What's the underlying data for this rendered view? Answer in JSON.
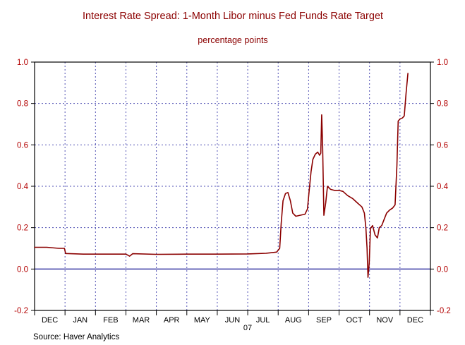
{
  "chart_data": {
    "type": "line",
    "title": "Interest Rate Spread: 1-Month Libor minus Fed Funds Rate Target",
    "subtitle": "percentage points",
    "source": "Source: Haver Analytics",
    "year_label": "07",
    "x_month_labels": [
      "DEC",
      "JAN",
      "FEB",
      "MAR",
      "APR",
      "MAY",
      "JUN",
      "JUL",
      "AUG",
      "SEP",
      "OCT",
      "NOV",
      "DEC"
    ],
    "x_months": 13,
    "y_ticks": [
      1.0,
      0.8,
      0.6,
      0.4,
      0.2,
      0.0,
      -0.2
    ],
    "ylim": [
      -0.2,
      1.0
    ],
    "grid": "dashed-both-axes",
    "legend": "none",
    "colors": {
      "title": "#8b0000",
      "axis_labels": "#b30000",
      "line": "#8b0000",
      "grid": "#5050b4",
      "zero_line": "#3333a0",
      "frame": "#000000",
      "month_labels": "#000000",
      "source": "#000000"
    },
    "series": [
      {
        "name": "1-Month Libor minus Fed Funds Rate Target (percentage points)",
        "points": [
          [
            0.0,
            0.105
          ],
          [
            0.4,
            0.105
          ],
          [
            0.8,
            0.1
          ],
          [
            0.98,
            0.1
          ],
          [
            1.02,
            0.075
          ],
          [
            1.6,
            0.072
          ],
          [
            2.4,
            0.072
          ],
          [
            3.0,
            0.072
          ],
          [
            3.12,
            0.062
          ],
          [
            3.22,
            0.074
          ],
          [
            4.0,
            0.071
          ],
          [
            5.0,
            0.072
          ],
          [
            6.0,
            0.072
          ],
          [
            7.0,
            0.073
          ],
          [
            7.6,
            0.076
          ],
          [
            7.95,
            0.082
          ],
          [
            8.05,
            0.1
          ],
          [
            8.1,
            0.22
          ],
          [
            8.16,
            0.33
          ],
          [
            8.24,
            0.365
          ],
          [
            8.32,
            0.37
          ],
          [
            8.4,
            0.33
          ],
          [
            8.48,
            0.27
          ],
          [
            8.58,
            0.255
          ],
          [
            8.72,
            0.26
          ],
          [
            8.88,
            0.265
          ],
          [
            8.96,
            0.29
          ],
          [
            9.02,
            0.38
          ],
          [
            9.08,
            0.47
          ],
          [
            9.14,
            0.53
          ],
          [
            9.22,
            0.555
          ],
          [
            9.3,
            0.565
          ],
          [
            9.36,
            0.55
          ],
          [
            9.4,
            0.56
          ],
          [
            9.43,
            0.745
          ],
          [
            9.46,
            0.6
          ],
          [
            9.5,
            0.26
          ],
          [
            9.56,
            0.32
          ],
          [
            9.62,
            0.4
          ],
          [
            9.72,
            0.385
          ],
          [
            9.85,
            0.38
          ],
          [
            10.0,
            0.38
          ],
          [
            10.13,
            0.375
          ],
          [
            10.28,
            0.355
          ],
          [
            10.45,
            0.34
          ],
          [
            10.6,
            0.32
          ],
          [
            10.75,
            0.3
          ],
          [
            10.83,
            0.27
          ],
          [
            10.88,
            0.2
          ],
          [
            10.92,
            0.1
          ],
          [
            10.95,
            -0.04
          ],
          [
            10.99,
            0.03
          ],
          [
            11.03,
            0.195
          ],
          [
            11.1,
            0.21
          ],
          [
            11.18,
            0.165
          ],
          [
            11.26,
            0.15
          ],
          [
            11.32,
            0.2
          ],
          [
            11.4,
            0.21
          ],
          [
            11.48,
            0.24
          ],
          [
            11.56,
            0.27
          ],
          [
            11.66,
            0.285
          ],
          [
            11.76,
            0.295
          ],
          [
            11.84,
            0.31
          ],
          [
            11.9,
            0.5
          ],
          [
            11.94,
            0.715
          ],
          [
            12.0,
            0.725
          ],
          [
            12.08,
            0.73
          ],
          [
            12.14,
            0.74
          ],
          [
            12.2,
            0.85
          ],
          [
            12.26,
            0.945
          ]
        ]
      }
    ]
  }
}
